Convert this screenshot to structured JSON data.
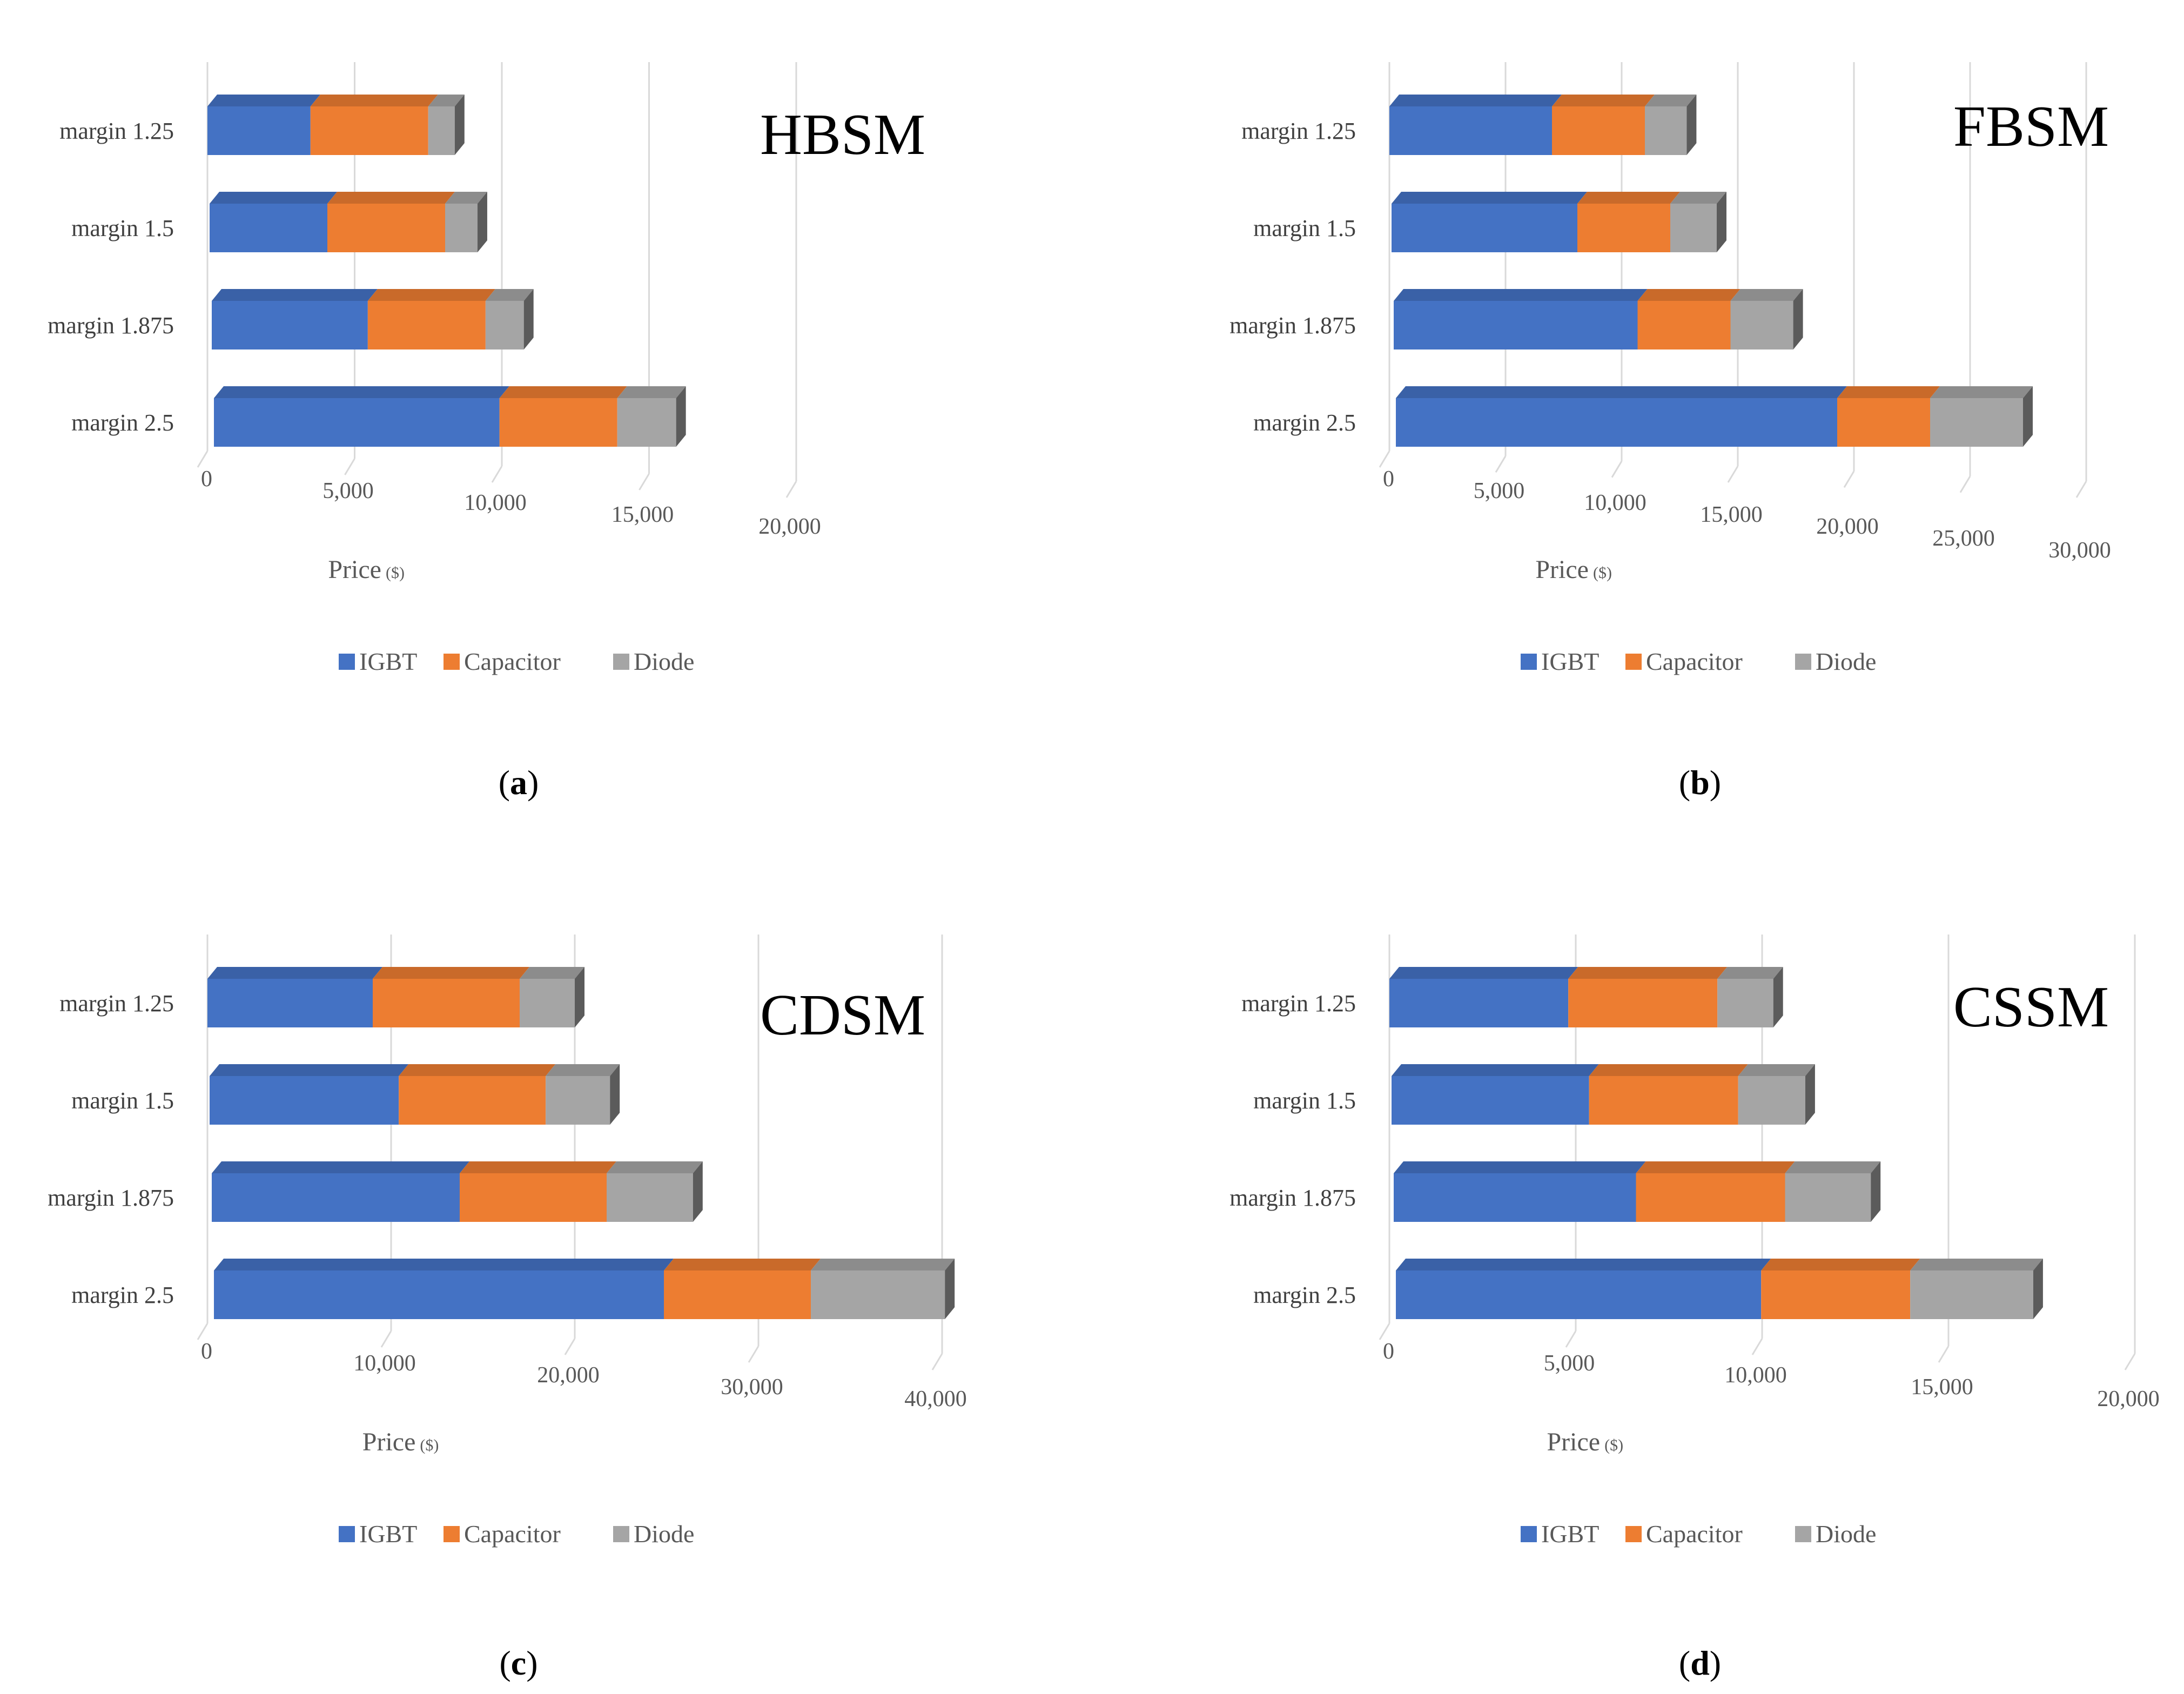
{
  "legend": [
    "IGBT",
    "Capacitor",
    "Diode"
  ],
  "colors": {
    "IGBT": "#4472C4",
    "Capacitor": "#ED7D31",
    "Diode": "#A5A5A5"
  },
  "chart_data": [
    {
      "type": "bar",
      "orientation": "horizontal",
      "stacked": true,
      "panel_label": "a",
      "title": "HBSM",
      "xlabel": "Price",
      "xlabel_unit": "($)",
      "categories": [
        "margin 1.25",
        "margin 1.5",
        "margin 1.875",
        "margin 2.5"
      ],
      "series": [
        {
          "name": "IGBT",
          "values": [
            3500,
            4000,
            5300,
            9700
          ]
        },
        {
          "name": "Capacitor",
          "values": [
            4000,
            4000,
            4000,
            4000
          ]
        },
        {
          "name": "Diode",
          "values": [
            900,
            1100,
            1300,
            2000
          ]
        }
      ],
      "xlim": [
        0,
        20000
      ],
      "xticks": [
        "0",
        "5,000",
        "10,000",
        "15,000",
        "20,000"
      ],
      "legend_position": "bottom"
    },
    {
      "type": "bar",
      "orientation": "horizontal",
      "stacked": true,
      "panel_label": "b",
      "title": "FBSM",
      "xlabel": "Price",
      "xlabel_unit": "($)",
      "categories": [
        "margin 1.25",
        "margin 1.5",
        "margin 1.875",
        "margin 2.5"
      ],
      "series": [
        {
          "name": "IGBT",
          "values": [
            7000,
            8000,
            10500,
            19000
          ]
        },
        {
          "name": "Capacitor",
          "values": [
            4000,
            4000,
            4000,
            4000
          ]
        },
        {
          "name": "Diode",
          "values": [
            1800,
            2000,
            2700,
            4000
          ]
        }
      ],
      "xlim": [
        0,
        30000
      ],
      "xticks": [
        "0",
        "5,000",
        "10,000",
        "15,000",
        "20,000",
        "25,000",
        "30,000"
      ],
      "legend_position": "bottom"
    },
    {
      "type": "bar",
      "orientation": "horizontal",
      "stacked": true,
      "panel_label": "c",
      "title": "CDSM",
      "xlabel": "Price",
      "xlabel_unit": "($)",
      "categories": [
        "margin 1.25",
        "margin 1.5",
        "margin 1.875",
        "margin 2.5"
      ],
      "series": [
        {
          "name": "IGBT",
          "values": [
            9000,
            10300,
            13500,
            24500
          ]
        },
        {
          "name": "Capacitor",
          "values": [
            8000,
            8000,
            8000,
            8000
          ]
        },
        {
          "name": "Diode",
          "values": [
            3000,
            3500,
            4700,
            7300
          ]
        }
      ],
      "xlim": [
        0,
        40000
      ],
      "xticks": [
        "0",
        "10,000",
        "20,000",
        "30,000",
        "40,000"
      ],
      "legend_position": "bottom"
    },
    {
      "type": "bar",
      "orientation": "horizontal",
      "stacked": true,
      "panel_label": "d",
      "title": "CSSM",
      "xlabel": "Price",
      "xlabel_unit": "($)",
      "categories": [
        "margin 1.25",
        "margin 1.5",
        "margin 1.875",
        "margin 2.5"
      ],
      "series": [
        {
          "name": "IGBT",
          "values": [
            4800,
            5300,
            6500,
            9800
          ]
        },
        {
          "name": "Capacitor",
          "values": [
            4000,
            4000,
            4000,
            4000
          ]
        },
        {
          "name": "Diode",
          "values": [
            1500,
            1800,
            2300,
            3300
          ]
        }
      ],
      "xlim": [
        0,
        20000
      ],
      "xticks": [
        "0",
        "5,000",
        "10,000",
        "15,000",
        "20,000"
      ],
      "legend_position": "bottom"
    }
  ]
}
